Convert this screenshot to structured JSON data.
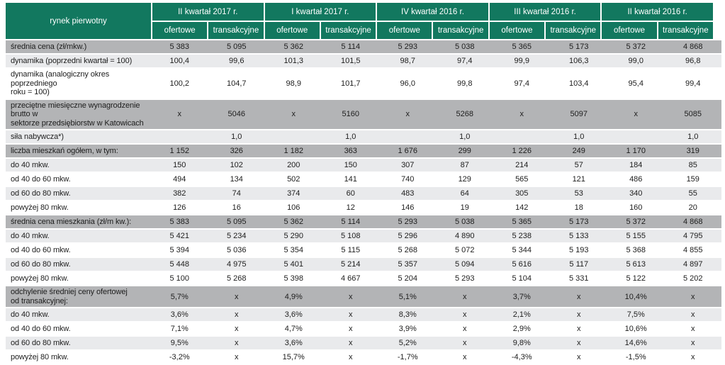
{
  "colors": {
    "header_green": "#12785f",
    "section_gray": "#b3b4b6",
    "alt_gray": "#e9eaec",
    "text_dark": "#1d1d1d"
  },
  "chart_data": {
    "type": "table",
    "title": "rynek pierwotny",
    "column_groups": [
      {
        "label": "II kwartał 2017 r."
      },
      {
        "label": "I kwartał 2017 r."
      },
      {
        "label": "IV kwartał 2016 r."
      },
      {
        "label": "III kwartał 2016 r."
      },
      {
        "label": "II kwartał 2016 r."
      }
    ],
    "subcolumns": [
      "ofertowe",
      "transakcyjne"
    ],
    "rows": [
      {
        "label": "średnia cena (zł/mkw.)",
        "style": "section",
        "values": [
          "5 383",
          "5 095",
          "5 362",
          "5 114",
          "5 293",
          "5 038",
          "5 365",
          "5 173",
          "5 372",
          "4 868"
        ]
      },
      {
        "label": "dynamika (poprzedni kwartał = 100)",
        "style": "alt",
        "values": [
          "100,4",
          "99,6",
          "101,3",
          "101,5",
          "98,7",
          "97,4",
          "99,9",
          "106,3",
          "99,0",
          "96,8"
        ]
      },
      {
        "label": "dynamika (analogiczny okres poprzedniego\nroku  = 100)",
        "style": "plain",
        "values": [
          "100,2",
          "104,7",
          "98,9",
          "101,7",
          "96,0",
          "99,8",
          "97,4",
          "103,4",
          "95,4",
          "99,4"
        ]
      },
      {
        "label": "przeciętne miesięczne wynagrodzenie brutto w\nsektorze przedsiębiorstw w Katowicach",
        "style": "section",
        "values": [
          "x",
          "5046",
          "x",
          "5160",
          "x",
          "5268",
          "x",
          "5097",
          "x",
          "5085"
        ]
      },
      {
        "label": "siła nabywcza*)",
        "style": "alt",
        "values": [
          "",
          "1,0",
          "",
          "1,0",
          "",
          "1,0",
          "",
          "1,0",
          "",
          "1,0"
        ]
      },
      {
        "label": "liczba mieszkań ogółem, w tym:",
        "style": "section",
        "values": [
          "1 152",
          "326",
          "1 182",
          "363",
          "1 676",
          "299",
          "1 226",
          "249",
          "1 170",
          "319"
        ]
      },
      {
        "label": "do 40 mkw.",
        "style": "alt",
        "values": [
          "150",
          "102",
          "200",
          "150",
          "307",
          "87",
          "214",
          "57",
          "184",
          "85"
        ]
      },
      {
        "label": "od 40 do 60 mkw.",
        "style": "plain",
        "values": [
          "494",
          "134",
          "502",
          "141",
          "740",
          "129",
          "565",
          "121",
          "486",
          "159"
        ]
      },
      {
        "label": "od 60 do 80 mkw.",
        "style": "alt",
        "values": [
          "382",
          "74",
          "374",
          "60",
          "483",
          "64",
          "305",
          "53",
          "340",
          "55"
        ]
      },
      {
        "label": "powyżej 80 mkw.",
        "style": "plain",
        "values": [
          "126",
          "16",
          "106",
          "12",
          "146",
          "19",
          "142",
          "18",
          "160",
          "20"
        ]
      },
      {
        "label": "średnia cena mieszkania (zł/m kw.):",
        "style": "section",
        "values": [
          "5 383",
          "5 095",
          "5 362",
          "5 114",
          "5 293",
          "5 038",
          "5 365",
          "5 173",
          "5 372",
          "4 868"
        ]
      },
      {
        "label": "do 40 mkw.",
        "style": "alt",
        "values": [
          "5 421",
          "5 234",
          "5 290",
          "5 108",
          "5 296",
          "4 890",
          "5 238",
          "5 133",
          "5 155",
          "4 795"
        ]
      },
      {
        "label": "od 40 do 60 mkw.",
        "style": "plain",
        "values": [
          "5 394",
          "5 036",
          "5 354",
          "5 115",
          "5 268",
          "5 072",
          "5 344",
          "5 193",
          "5 368",
          "4 855"
        ]
      },
      {
        "label": "od 60 do 80 mkw.",
        "style": "alt",
        "values": [
          "5 448",
          "4 975",
          "5 401",
          "5 214",
          "5 357",
          "5 094",
          "5 616",
          "5 117",
          "5 613",
          "4 897"
        ]
      },
      {
        "label": "powyżej 80 mkw.",
        "style": "plain",
        "values": [
          "5 100",
          "5 268",
          "5 398",
          "4 667",
          "5 204",
          "5 293",
          "5 104",
          "5 331",
          "5 122",
          "5 202"
        ]
      },
      {
        "label": "odchylenie średniej ceny ofertowej\nod transakcyjnej:",
        "style": "section",
        "values": [
          "5,7%",
          "x",
          "4,9%",
          "x",
          "5,1%",
          "x",
          "3,7%",
          "x",
          "10,4%",
          "x"
        ]
      },
      {
        "label": "do 40 mkw.",
        "style": "alt",
        "values": [
          "3,6%",
          "x",
          "3,6%",
          "x",
          "8,3%",
          "x",
          "2,1%",
          "x",
          "7,5%",
          "x"
        ]
      },
      {
        "label": "od 40 do 60 mkw.",
        "style": "plain",
        "values": [
          "7,1%",
          "x",
          "4,7%",
          "x",
          "3,9%",
          "x",
          "2,9%",
          "x",
          "10,6%",
          "x"
        ]
      },
      {
        "label": "od 60 do 80 mkw.",
        "style": "alt",
        "values": [
          "9,5%",
          "x",
          "3,6%",
          "x",
          "5,2%",
          "x",
          "9,8%",
          "x",
          "14,6%",
          "x"
        ]
      },
      {
        "label": "powyżej 80 mkw.",
        "style": "plain",
        "values": [
          "-3,2%",
          "x",
          "15,7%",
          "x",
          "-1,7%",
          "x",
          "-4,3%",
          "x",
          "-1,5%",
          "x"
        ]
      }
    ]
  }
}
